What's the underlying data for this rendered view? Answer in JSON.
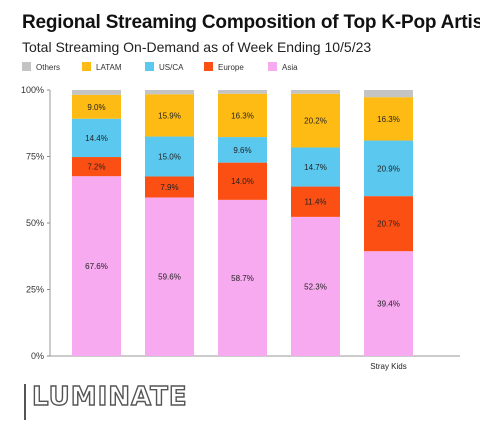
{
  "chart_data": {
    "type": "bar",
    "stacked": true,
    "title": "Regional Streaming Composition of Top K-Pop Artists",
    "subtitle": "Total Streaming On-Demand as of Week Ending 10/5/23",
    "categories": [
      "",
      "",
      "",
      "",
      "Stray Kids"
    ],
    "series": [
      {
        "name": "Asia",
        "color": "#f7aaf0",
        "values": [
          67.6,
          59.6,
          58.7,
          52.3,
          39.4
        ]
      },
      {
        "name": "Europe",
        "color": "#fb4f14",
        "values": [
          7.2,
          7.9,
          14.0,
          11.4,
          20.7
        ]
      },
      {
        "name": "US/CA",
        "color": "#5ac8ef",
        "values": [
          14.4,
          15.0,
          9.6,
          14.7,
          20.9
        ]
      },
      {
        "name": "LATAM",
        "color": "#fdbb14",
        "values": [
          9.0,
          15.9,
          16.3,
          20.2,
          16.3
        ]
      },
      {
        "name": "Others",
        "color": "#c4c4c4",
        "values": [
          1.8,
          1.6,
          1.4,
          1.4,
          2.7
        ]
      }
    ],
    "data_labels": [
      [
        "67.6%",
        "59.6%",
        "58.7%",
        "52.3%",
        "39.4%"
      ],
      [
        "7.2%",
        "7.9%",
        "14.0%",
        "11.4%",
        "20.7%"
      ],
      [
        "14.4%",
        "15.0%",
        "9.6%",
        "14.7%",
        "20.9%"
      ],
      [
        "9.0%",
        "15.9%",
        "16.3%",
        "20.2%",
        "16.3%"
      ],
      [
        "",
        "",
        "",
        "",
        ""
      ]
    ],
    "legend_order": [
      "Others",
      "LATAM",
      "US/CA",
      "Europe",
      "Asia"
    ],
    "legend_position": "top-left",
    "ylim": [
      0,
      100
    ],
    "yticks": [
      "0%",
      "25%",
      "50%",
      "75%",
      "100%"
    ],
    "grid": false
  },
  "brand": {
    "logo_text": "LUMINATE"
  }
}
